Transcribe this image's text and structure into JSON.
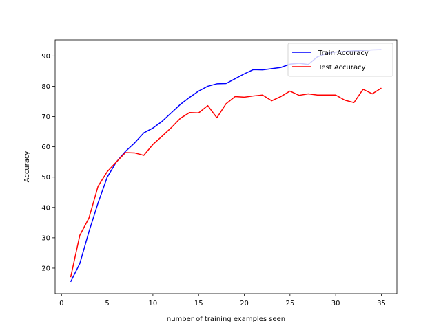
{
  "chart_data": {
    "type": "line",
    "title": "",
    "xlabel": "number of training examples seen",
    "ylabel": "Accuracy",
    "xlim": [
      -0.7,
      36.7
    ],
    "ylim": [
      11.6,
      95.3
    ],
    "xticks": [
      0,
      5,
      10,
      15,
      20,
      25,
      30,
      35
    ],
    "yticks": [
      20,
      30,
      40,
      50,
      60,
      70,
      80,
      90
    ],
    "grid": false,
    "legend_position": "top-right",
    "x": [
      1,
      2,
      3,
      4,
      5,
      6,
      7,
      8,
      9,
      10,
      11,
      12,
      13,
      14,
      15,
      16,
      17,
      18,
      19,
      20,
      21,
      22,
      23,
      24,
      25,
      26,
      27,
      28,
      29,
      30,
      31,
      32,
      33,
      34,
      35
    ],
    "series": [
      {
        "name": "Train Accuracy",
        "color": "#0000ff",
        "values": [
          15.5,
          21.5,
          32.0,
          41.5,
          50.0,
          55.0,
          58.5,
          61.3,
          64.6,
          66.2,
          68.4,
          71.2,
          74.0,
          76.3,
          78.4,
          80.0,
          80.8,
          80.9,
          82.5,
          84.1,
          85.5,
          85.4,
          85.8,
          86.2,
          87.3,
          87.6,
          87.2,
          89.7,
          90.8,
          91.3,
          91.5,
          91.7,
          91.8,
          92.0,
          92.1
        ]
      },
      {
        "name": "Test Accuracy",
        "color": "#ff0000",
        "values": [
          17.0,
          30.8,
          36.5,
          47.0,
          51.8,
          55.0,
          58.1,
          58.0,
          57.2,
          60.8,
          63.5,
          66.3,
          69.4,
          71.3,
          71.2,
          73.6,
          69.6,
          74.2,
          76.6,
          76.4,
          76.8,
          77.1,
          75.2,
          76.6,
          78.4,
          77.0,
          77.5,
          77.1,
          77.1,
          77.1,
          75.4,
          74.6,
          79.0,
          77.5,
          79.4
        ]
      }
    ]
  }
}
